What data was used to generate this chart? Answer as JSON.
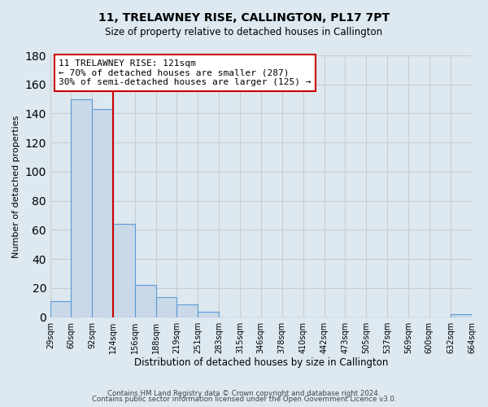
{
  "title": "11, TRELAWNEY RISE, CALLINGTON, PL17 7PT",
  "subtitle": "Size of property relative to detached houses in Callington",
  "xlabel": "Distribution of detached houses by size in Callington",
  "ylabel": "Number of detached properties",
  "bin_edges": [
    29,
    60,
    92,
    124,
    156,
    188,
    219,
    251,
    283,
    315,
    346,
    378,
    410,
    442,
    473,
    505,
    537,
    569,
    600,
    632,
    664
  ],
  "bar_heights": [
    11,
    150,
    143,
    64,
    22,
    14,
    9,
    4,
    0,
    0,
    0,
    0,
    0,
    0,
    0,
    0,
    0,
    0,
    0,
    2
  ],
  "bar_color": "#c9d9e8",
  "bar_edge_color": "#5b9bd5",
  "red_line_x": 124,
  "annotation_line1": "11 TRELAWNEY RISE: 121sqm",
  "annotation_line2": "← 70% of detached houses are smaller (287)",
  "annotation_line3": "30% of semi-detached houses are larger (125) →",
  "annotation_box_color": "#ffffff",
  "annotation_box_edge": "#cc0000",
  "ylim": [
    0,
    180
  ],
  "yticks": [
    0,
    20,
    40,
    60,
    80,
    100,
    120,
    140,
    160,
    180
  ],
  "grid_color": "#cccccc",
  "background_color": "#dde8f0",
  "footer_line1": "Contains HM Land Registry data © Crown copyright and database right 2024.",
  "footer_line2": "Contains public sector information licensed under the Open Government Licence v3.0."
}
